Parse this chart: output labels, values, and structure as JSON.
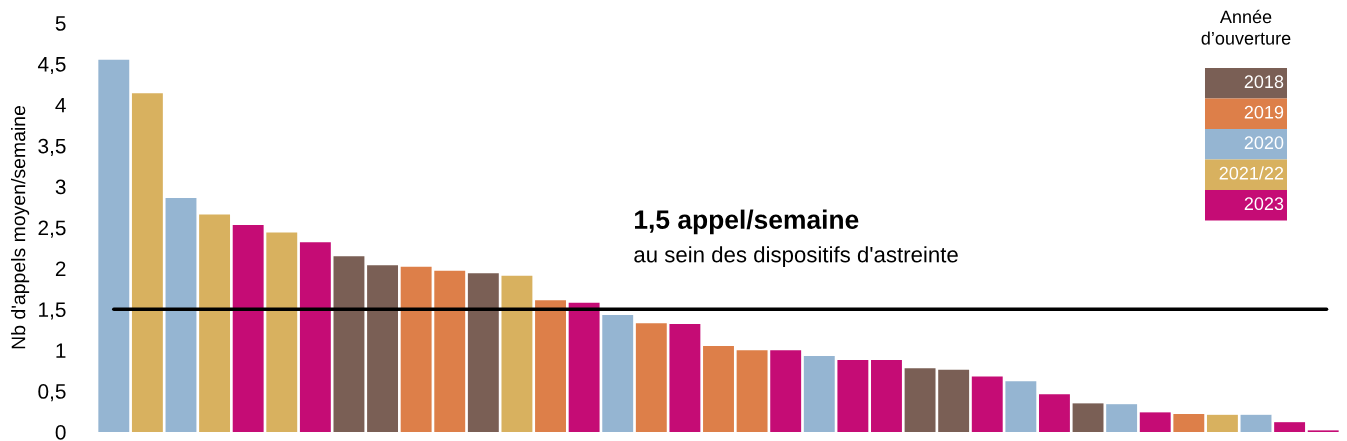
{
  "chart_data": {
    "type": "bar",
    "ylabel": "Nb d'appels moyen/semaine",
    "legend_title": "Année d’ouverture",
    "legend": "top right",
    "grid": false,
    "categories": [
      null,
      null,
      null,
      null,
      null,
      null,
      null,
      null,
      null,
      null,
      null,
      null,
      null,
      null,
      null,
      null,
      null,
      null,
      null,
      null,
      null,
      null,
      null,
      null,
      null,
      null,
      null,
      null,
      null,
      null,
      null,
      null,
      null,
      null,
      null,
      null,
      null
    ],
    "series": [
      {
        "name": "2018",
        "color": "#7a5f55",
        "values": [
          null,
          null,
          null,
          null,
          null,
          null,
          null,
          2.15,
          2.04,
          null,
          null,
          1.94,
          null,
          null,
          null,
          null,
          null,
          null,
          null,
          null,
          null,
          null,
          null,
          null,
          0.78,
          0.76,
          null,
          null,
          null,
          0.35,
          null,
          null,
          null,
          null,
          null,
          null,
          null
        ]
      },
      {
        "name": "2019",
        "color": "#dd7f49",
        "values": [
          null,
          null,
          null,
          null,
          null,
          null,
          null,
          null,
          null,
          2.02,
          1.97,
          null,
          null,
          1.61,
          null,
          null,
          1.33,
          null,
          1.05,
          1.0,
          null,
          null,
          null,
          null,
          null,
          null,
          null,
          null,
          null,
          null,
          null,
          null,
          0.22,
          null,
          null,
          null,
          null
        ]
      },
      {
        "name": "2020",
        "color": "#95b5d2",
        "values": [
          4.55,
          null,
          2.86,
          null,
          null,
          null,
          null,
          null,
          null,
          null,
          null,
          null,
          null,
          null,
          null,
          1.43,
          null,
          null,
          null,
          null,
          null,
          0.93,
          null,
          null,
          null,
          null,
          null,
          0.62,
          null,
          null,
          0.34,
          null,
          null,
          null,
          0.21,
          null,
          null
        ]
      },
      {
        "name": "2021/22",
        "color": "#d8b15f",
        "values": [
          null,
          4.14,
          null,
          2.66,
          null,
          2.44,
          null,
          null,
          null,
          null,
          null,
          null,
          1.91,
          null,
          null,
          null,
          null,
          null,
          null,
          null,
          null,
          null,
          null,
          null,
          null,
          null,
          null,
          null,
          null,
          null,
          null,
          null,
          null,
          0.21,
          null,
          null,
          null
        ]
      },
      {
        "name": "2023",
        "color": "#c50c75",
        "values": [
          null,
          null,
          null,
          null,
          2.53,
          null,
          2.32,
          null,
          null,
          null,
          null,
          null,
          null,
          null,
          1.58,
          null,
          null,
          1.32,
          null,
          null,
          1.0,
          null,
          0.88,
          0.88,
          null,
          null,
          0.68,
          null,
          0.46,
          null,
          null,
          0.24,
          null,
          null,
          null,
          0.12,
          0.02
        ]
      }
    ],
    "ylim": [
      0,
      5
    ],
    "yticks": [
      0,
      {
        "value": 0.5,
        "label": "0,5"
      },
      1,
      {
        "value": 1.5,
        "label": "1,5"
      },
      2,
      {
        "value": 2.5,
        "label": "2,5"
      },
      3,
      {
        "value": 3.5,
        "label": "3,5"
      },
      4,
      {
        "value": 4.5,
        "label": "4,5"
      },
      5
    ],
    "ref_lines": [
      {
        "axis": "y",
        "value": 1.5,
        "label": "1,5 appel/semaine",
        "color": "#000000",
        "line_style": "solid"
      }
    ],
    "annotations": [
      "au sein des dispositifs d'astreinte"
    ]
  }
}
